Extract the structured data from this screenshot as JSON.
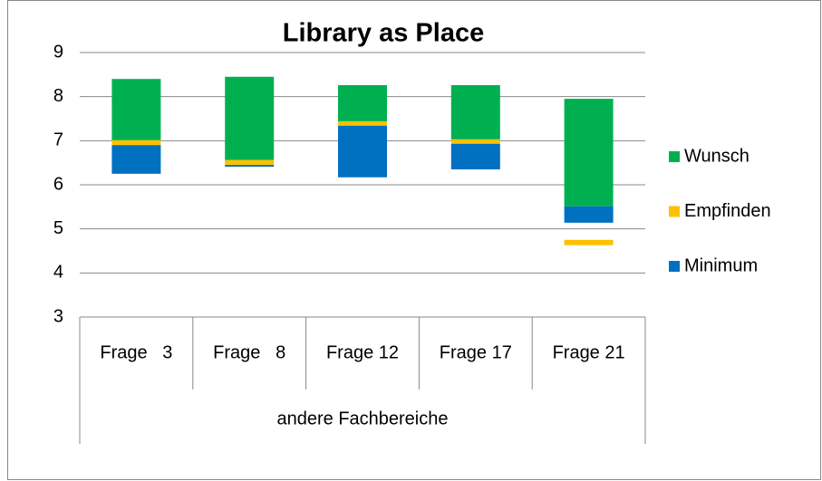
{
  "chart_data": {
    "type": "floating-bar",
    "title": "Library as Place",
    "categories": [
      "Frage   3",
      "Frage   8",
      "Frage 12",
      "Frage 17",
      "Frage 21"
    ],
    "group": "andere Fachbereiche",
    "series": [
      {
        "name": "Wunsch",
        "color": "#00b050",
        "values": [
          [
            7.01,
            8.4
          ],
          [
            6.56,
            8.45
          ],
          [
            7.44,
            8.26
          ],
          [
            7.03,
            8.26
          ],
          [
            5.51,
            7.95
          ]
        ]
      },
      {
        "name": "Empfinden",
        "color": "#ffc000",
        "values": [
          [
            6.9,
            7.01
          ],
          [
            6.45,
            6.56
          ],
          [
            7.34,
            7.44
          ],
          [
            6.93,
            7.03
          ],
          [
            4.63,
            4.75
          ]
        ]
      },
      {
        "name": "Minimum",
        "color": "#0070c0",
        "values": [
          [
            6.25,
            6.9
          ],
          [
            6.41,
            6.45
          ],
          [
            6.17,
            7.34
          ],
          [
            6.35,
            6.93
          ],
          [
            5.14,
            5.51
          ]
        ]
      }
    ],
    "ylim": [
      3,
      9
    ],
    "yticks": [
      3,
      4,
      5,
      6,
      7,
      8,
      9
    ],
    "grid": true,
    "legend": "right"
  }
}
